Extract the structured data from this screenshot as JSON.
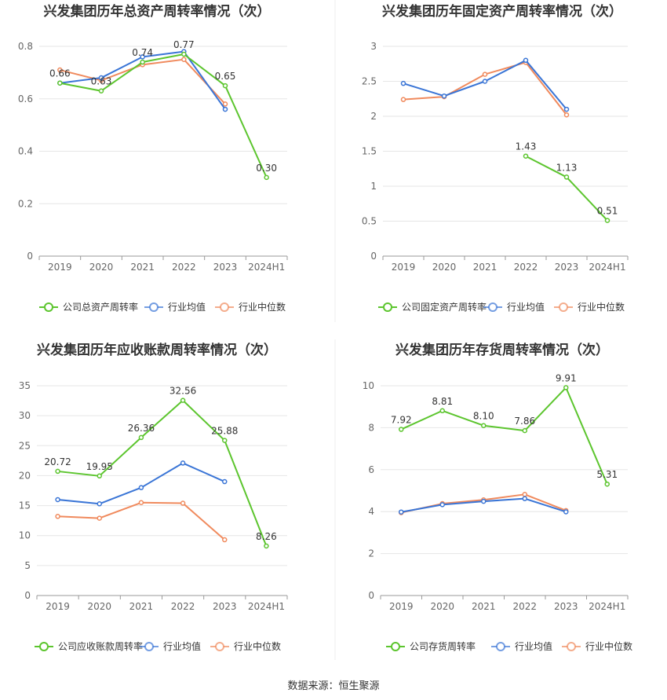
{
  "colors": {
    "company": "#5cc52e",
    "avg": "#3a75d6",
    "median": "#f08a5d"
  },
  "legend": {
    "avg": "行业均值",
    "median": "行业中位数"
  },
  "source": "数据来源：恒生聚源",
  "chart_data": [
    {
      "type": "line",
      "title": "兴发集团历年总资产周转率情况（次）",
      "categories": [
        "2019",
        "2020",
        "2021",
        "2022",
        "2023",
        "2024H1"
      ],
      "ylim": [
        0,
        0.8
      ],
      "yticks": [
        "0",
        "0.2",
        "0.4",
        "0.6",
        "0.8"
      ],
      "grid": true,
      "legend_position": "bottom",
      "series": [
        {
          "name": "公司总资产周转率",
          "values": [
            0.66,
            0.63,
            0.74,
            0.77,
            0.65,
            0.3
          ],
          "labels": [
            "0.66",
            "0.63",
            "0.74",
            "0.77",
            "0.65",
            "0.30"
          ]
        },
        {
          "name": "行业均值",
          "values": [
            0.66,
            0.68,
            0.76,
            0.78,
            0.56,
            null
          ]
        },
        {
          "name": "行业中位数",
          "values": [
            0.71,
            0.67,
            0.73,
            0.75,
            0.58,
            null
          ]
        }
      ]
    },
    {
      "type": "line",
      "title": "兴发集团历年固定资产周转率情况（次）",
      "categories": [
        "2019",
        "2020",
        "2021",
        "2022",
        "2023",
        "2024H1"
      ],
      "ylim": [
        0,
        3
      ],
      "yticks": [
        "0",
        "0.5",
        "1",
        "1.5",
        "2",
        "2.5",
        "3"
      ],
      "grid": true,
      "legend_position": "bottom",
      "series": [
        {
          "name": "公司固定资产周转率",
          "values": [
            null,
            null,
            null,
            1.43,
            1.13,
            0.51
          ],
          "labels": [
            null,
            null,
            null,
            "1.43",
            "1.13",
            "0.51"
          ]
        },
        {
          "name": "行业均值",
          "values": [
            2.47,
            2.29,
            2.5,
            2.8,
            2.1,
            null
          ]
        },
        {
          "name": "行业中位数",
          "values": [
            2.24,
            2.28,
            2.6,
            2.77,
            2.02,
            null
          ]
        }
      ]
    },
    {
      "type": "line",
      "title": "兴发集团历年应收账款周转率情况（次）",
      "categories": [
        "2019",
        "2020",
        "2021",
        "2022",
        "2023",
        "2024H1"
      ],
      "ylim": [
        0,
        35
      ],
      "yticks": [
        "0",
        "5",
        "10",
        "15",
        "20",
        "25",
        "30",
        "35"
      ],
      "grid": true,
      "legend_position": "bottom",
      "series": [
        {
          "name": "公司应收账款周转率",
          "values": [
            20.72,
            19.95,
            26.36,
            32.56,
            25.88,
            8.26
          ],
          "labels": [
            "20.72",
            "19.95",
            "26.36",
            "32.56",
            "25.88",
            "8.26"
          ]
        },
        {
          "name": "行业均值",
          "values": [
            16.0,
            15.3,
            18.0,
            22.1,
            19.0,
            null
          ]
        },
        {
          "name": "行业中位数",
          "values": [
            13.2,
            12.9,
            15.5,
            15.4,
            9.3,
            null
          ]
        }
      ]
    },
    {
      "type": "line",
      "title": "兴发集团历年存货周转率情况（次）",
      "categories": [
        "2019",
        "2020",
        "2021",
        "2022",
        "2023",
        "2024H1"
      ],
      "ylim": [
        0,
        10
      ],
      "yticks": [
        "0",
        "2",
        "4",
        "6",
        "8",
        "10"
      ],
      "grid": true,
      "legend_position": "bottom",
      "series": [
        {
          "name": "公司存货周转率",
          "values": [
            7.92,
            8.81,
            8.1,
            7.86,
            9.91,
            5.31
          ],
          "labels": [
            "7.92",
            "8.81",
            "8.10",
            "7.86",
            "9.91",
            "5.31"
          ]
        },
        {
          "name": "行业均值",
          "values": [
            3.98,
            4.33,
            4.49,
            4.62,
            3.99,
            null
          ]
        },
        {
          "name": "行业中位数",
          "values": [
            3.95,
            4.38,
            4.56,
            4.82,
            4.05,
            null
          ]
        }
      ]
    }
  ]
}
